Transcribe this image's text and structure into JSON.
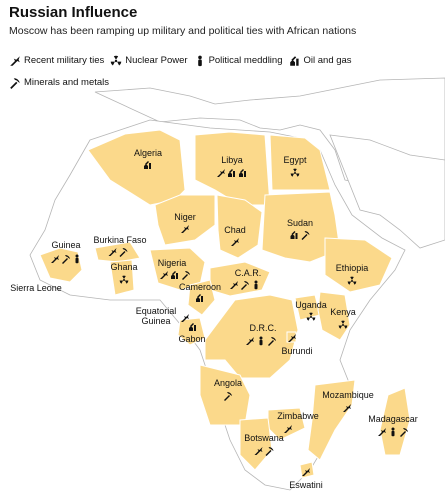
{
  "title": "Russian Influence",
  "subtitle": "Moscow has been ramping up military and political ties with African nations",
  "legend": [
    {
      "key": "military",
      "label": "Recent military ties",
      "icon": "jet-icon"
    },
    {
      "key": "nuclear",
      "label": "Nuclear Power",
      "icon": "radiation-icon"
    },
    {
      "key": "political",
      "label": "Political meddling",
      "icon": "person-icon"
    },
    {
      "key": "oil",
      "label": "Oil and gas",
      "icon": "oil-pump-icon"
    },
    {
      "key": "minerals",
      "label": "Minerals and metals",
      "icon": "pickaxe-icon"
    }
  ],
  "colors": {
    "highlight": "#fbd98b",
    "land": "#ffffff",
    "border": "#b5b5b5",
    "icon": "#111111"
  },
  "countries": [
    {
      "name": "Algeria",
      "ties": [
        "oil"
      ]
    },
    {
      "name": "Libya",
      "ties": [
        "military",
        "oil",
        "oil"
      ]
    },
    {
      "name": "Egypt",
      "ties": [
        "nuclear"
      ]
    },
    {
      "name": "Niger",
      "ties": [
        "military"
      ]
    },
    {
      "name": "Chad",
      "ties": [
        "military"
      ]
    },
    {
      "name": "Sudan",
      "ties": [
        "oil",
        "minerals"
      ]
    },
    {
      "name": "Guinea",
      "ties": [
        "military",
        "minerals",
        "political"
      ]
    },
    {
      "name": "Burkina Faso",
      "ties": [
        "military",
        "minerals"
      ]
    },
    {
      "name": "Ghana",
      "ties": [
        "nuclear"
      ]
    },
    {
      "name": "Sierra Leone",
      "ties": []
    },
    {
      "name": "Nigeria",
      "ties": [
        "military",
        "oil",
        "minerals"
      ]
    },
    {
      "name": "Ethiopia",
      "ties": [
        "nuclear"
      ]
    },
    {
      "name": "C.A.R.",
      "ties": [
        "military",
        "minerals",
        "political"
      ]
    },
    {
      "name": "Cameroon",
      "ties": [
        "oil"
      ]
    },
    {
      "name": "Equatorial Guinea",
      "ties": [
        "military"
      ]
    },
    {
      "name": "Gabon",
      "ties": [
        "oil"
      ]
    },
    {
      "name": "Uganda",
      "ties": [
        "nuclear"
      ]
    },
    {
      "name": "Kenya",
      "ties": [
        "nuclear"
      ]
    },
    {
      "name": "D.R.C.",
      "ties": [
        "military",
        "political",
        "minerals"
      ]
    },
    {
      "name": "Burundi",
      "ties": [
        "military"
      ]
    },
    {
      "name": "Angola",
      "ties": [
        "minerals"
      ]
    },
    {
      "name": "Mozambique",
      "ties": [
        "military"
      ]
    },
    {
      "name": "Madagascar",
      "ties": [
        "military",
        "political",
        "minerals"
      ]
    },
    {
      "name": "Zimbabwe",
      "ties": [
        "military"
      ]
    },
    {
      "name": "Botswana",
      "ties": [
        "military",
        "minerals"
      ]
    },
    {
      "name": "Eswatini",
      "ties": [
        "military"
      ]
    }
  ]
}
